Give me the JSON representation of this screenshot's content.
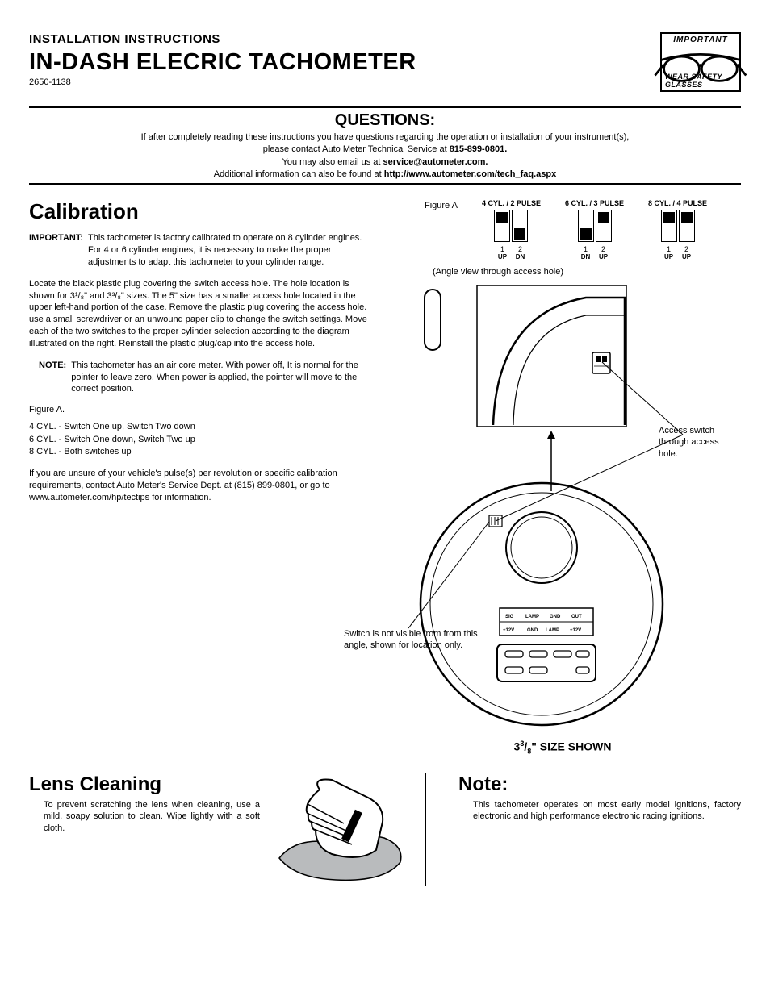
{
  "header": {
    "subtitle": "INSTALLATION INSTRUCTIONS",
    "title": "IN-DASH ELECRIC TACHOMETER",
    "part_number": "2650-1138",
    "safety": {
      "important": "IMPORTANT",
      "text": "WEAR SAFETY GLASSES"
    }
  },
  "questions": {
    "heading": "QUESTIONS:",
    "line1_a": "If after completely reading these instructions you have questions regarding the operation or installation of your instrument(s),",
    "line2_a": "please contact Auto Meter Technical Service at ",
    "phone": "815-899-0801.",
    "line3_a": "You may also email us at ",
    "email": "service@autometer.com.",
    "line4_a": "Additional information can also be found at ",
    "url": "http://www.autometer.com/tech_faq.aspx"
  },
  "calibration": {
    "heading": "Calibration",
    "important_label": "IMPORTANT:",
    "important_text": "This tachometer is factory calibrated to operate on 8 cylinder engines.  For 4 or 6 cylinder engines, it is necessary to make the proper adjustments to adapt this tachometer to your cylinder range.",
    "para1": "Locate the black plastic plug covering the switch access hole.  The hole location is shown for 3¹/₈\" and 3³/₈\" sizes.  The 5\" size has a smaller access hole located in the upper left-hand portion of the case.  Remove the plastic plug covering the access hole.  use a small screwdriver or an unwound paper clip to change the switch settings.  Move each of the two switches to the proper cylinder selection according to the diagram illustrated on the right.  Reinstall the plastic plug/cap into the access hole.",
    "note_label": "NOTE:",
    "note_text": "This tachometer has an air core meter.  With power off, It is normal for the pointer to leave zero.  When power is applied, the pointer will move to the correct position.",
    "figureA_label": "Figure A.",
    "settings": {
      "s4": "4 CYL. - Switch One up, Switch Two down",
      "s6": "6 CYL. - Switch One down, Switch Two up",
      "s8": "8 CYL. - Both switches up"
    },
    "para2": "If you are unsure of your vehicle's pulse(s) per revolution or specific calibration requirements, contact Auto Meter's Service Dept. at (815) 899-0801, or go to www.autometer.com/hp/tectips for information."
  },
  "figureA": {
    "label": "Figure A",
    "groups": [
      {
        "title": "4 CYL. / 2 PULSE",
        "sw1": "UP",
        "sw2": "DN",
        "cls1": "sw-up",
        "cls2": "sw-dn"
      },
      {
        "title": "6 CYL. / 3 PULSE",
        "sw1": "DN",
        "sw2": "UP",
        "cls1": "sw-dn",
        "cls2": "sw-up"
      },
      {
        "title": "8 CYL. / 4 PULSE",
        "sw1": "UP",
        "sw2": "UP",
        "cls1": "sw-up",
        "cls2": "sw-up"
      }
    ],
    "angle_note": "(Angle view through access hole)"
  },
  "diagram": {
    "callout1": "Access switch through access hole.",
    "callout2": "Switch is not visible from from this angle, shown for location only.",
    "connector_top": [
      "SIG",
      "LAMP",
      "GND",
      "OUT"
    ],
    "connector_bot": [
      "+12V",
      "GND",
      "LAMP",
      "+12V"
    ],
    "size_shown": "3³/₈\" SIZE SHOWN"
  },
  "lens": {
    "heading": "Lens Cleaning",
    "text": "To prevent scratching the lens when cleaning, use a mild, soapy solution to clean.  Wipe lightly with a soft cloth."
  },
  "note": {
    "heading": "Note:",
    "text": "This tachometer operates on most early model ignitions, factory electronic and high performance electronic racing ignitions."
  },
  "colors": {
    "text": "#000000",
    "bg": "#ffffff",
    "cloth": "#b9bbbd"
  }
}
